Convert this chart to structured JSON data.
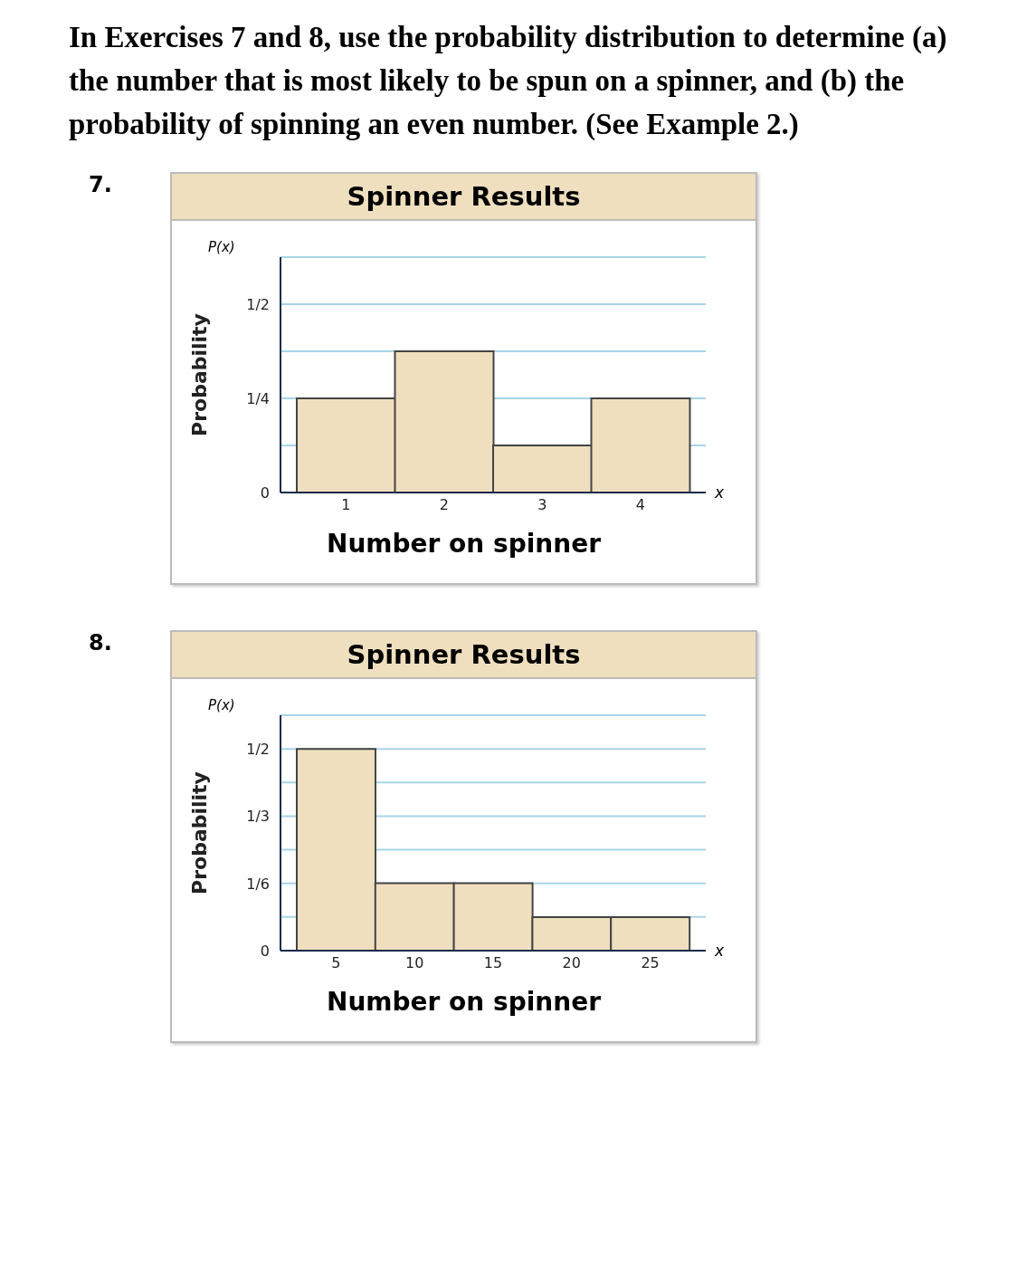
{
  "chart_data": [
    {
      "type": "bar",
      "title": "Spinner Results",
      "xlabel": "Number on spinner",
      "ylabel": "Probability",
      "annotations": [
        "In Exercises 7 and 8, use the probability distribution to determine (a) the number that is most likely to be spun on a spinner, and (b) the probability of spinning an even number. (See Example 2.)",
        "7.",
        "P(x)",
        "x"
      ],
      "categories": [
        "1",
        "2",
        "3",
        "4"
      ],
      "values": [
        0.25,
        0.375,
        0.125,
        0.25
      ],
      "color": "#efdfbe",
      "ylim": [
        0,
        0.625
      ],
      "yticks": [
        0,
        {
          "value": 0.125,
          "label": null
        },
        {
          "value": 0.25,
          "label": "1/4"
        },
        {
          "value": 0.375,
          "label": null
        },
        {
          "value": 0.5,
          "label": "1/2"
        },
        {
          "value": 0.625,
          "label": null
        }
      ],
      "grid": "y"
    },
    {
      "type": "bar",
      "title": "Spinner Results",
      "xlabel": "Number on spinner",
      "ylabel": "Probability",
      "annotations": [
        "8.",
        "P(x)",
        "x"
      ],
      "categories": [
        "5",
        "10",
        "15",
        "20",
        "25"
      ],
      "values": [
        0.5,
        0.167,
        0.167,
        0.083,
        0.083
      ],
      "color": "#efdfbe",
      "ylim": [
        0,
        0.5833
      ],
      "yticks": [
        0,
        {
          "value": 0.0833,
          "label": null
        },
        {
          "value": 0.1667,
          "label": "1/6"
        },
        {
          "value": 0.25,
          "label": null
        },
        {
          "value": 0.3333,
          "label": "1/3"
        },
        {
          "value": 0.4167,
          "label": null
        },
        {
          "value": 0.5,
          "label": "1/2"
        },
        {
          "value": 0.5833,
          "label": null
        }
      ],
      "grid": "y"
    }
  ]
}
